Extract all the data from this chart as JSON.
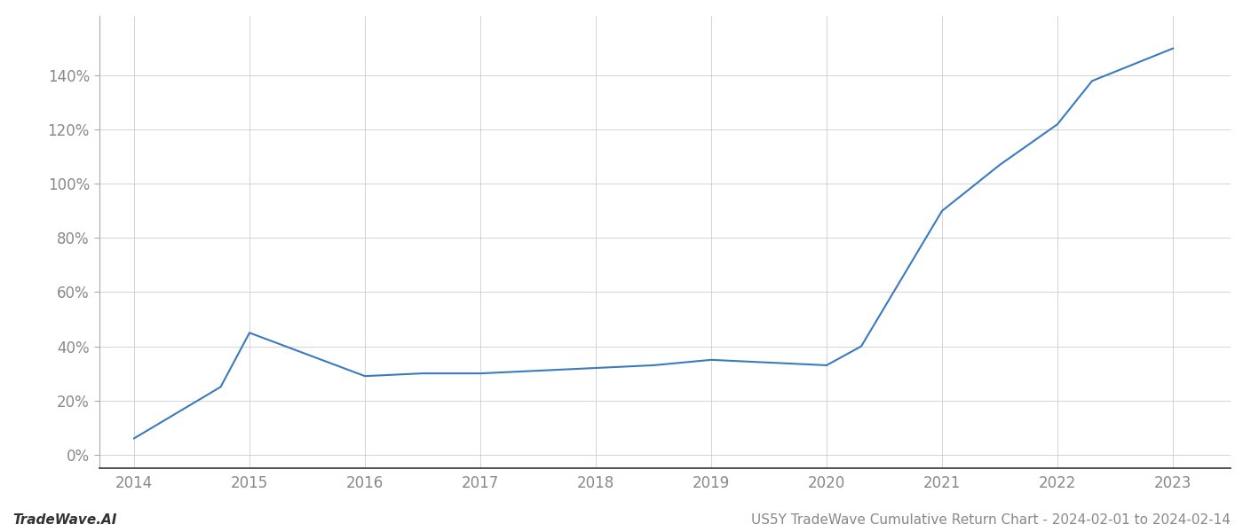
{
  "x_points": [
    2014,
    2014.75,
    2015,
    2015.5,
    2016,
    2016.5,
    2017,
    2017.5,
    2018,
    2018.5,
    2019,
    2019.5,
    2020,
    2020.3,
    2021,
    2021.5,
    2022,
    2022.3,
    2023
  ],
  "y_points": [
    6,
    25,
    45,
    37,
    29,
    30,
    30,
    31,
    32,
    33,
    35,
    34,
    33,
    40,
    90,
    107,
    122,
    138,
    150
  ],
  "line_color": "#3a7abf",
  "line_width": 1.5,
  "background_color": "#ffffff",
  "grid_color": "#cccccc",
  "footer_left": "TradeWave.AI",
  "footer_right": "US5Y TradeWave Cumulative Return Chart - 2024-02-01 to 2024-02-14",
  "xlim": [
    2013.7,
    2023.5
  ],
  "ylim": [
    -5,
    162
  ],
  "yticks": [
    0,
    20,
    40,
    60,
    80,
    100,
    120,
    140
  ],
  "xticks": [
    2014,
    2015,
    2016,
    2017,
    2018,
    2019,
    2020,
    2021,
    2022,
    2023
  ],
  "tick_label_color": "#888888",
  "tick_label_fontsize": 12,
  "footer_fontsize": 11,
  "spine_color": "#333333",
  "left_spine_color": "#aaaaaa"
}
